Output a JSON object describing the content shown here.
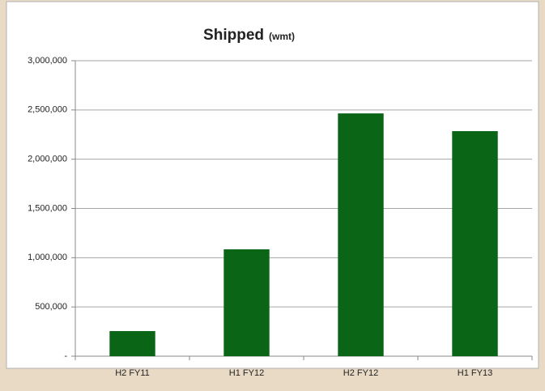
{
  "chart_data": {
    "type": "bar",
    "title": "Shipped",
    "title_unit": "(wmt)",
    "categories": [
      "H2 FY11",
      "H1 FY12",
      "H2 FY12",
      "H1 FY13"
    ],
    "values": [
      255000,
      1085000,
      2465000,
      2285000
    ],
    "color": "#0b6516",
    "ylim": [
      0,
      3000000
    ],
    "yticks": [
      {
        "value": 0,
        "label": "-"
      },
      {
        "value": 500000,
        "label": "500,000"
      },
      {
        "value": 1000000,
        "label": "1,000,000"
      },
      {
        "value": 1500000,
        "label": "1,500,000"
      },
      {
        "value": 2000000,
        "label": "2,000,000"
      },
      {
        "value": 2500000,
        "label": "2,500,000"
      },
      {
        "value": 3000000,
        "label": "3,000,000"
      }
    ],
    "grid": true
  }
}
